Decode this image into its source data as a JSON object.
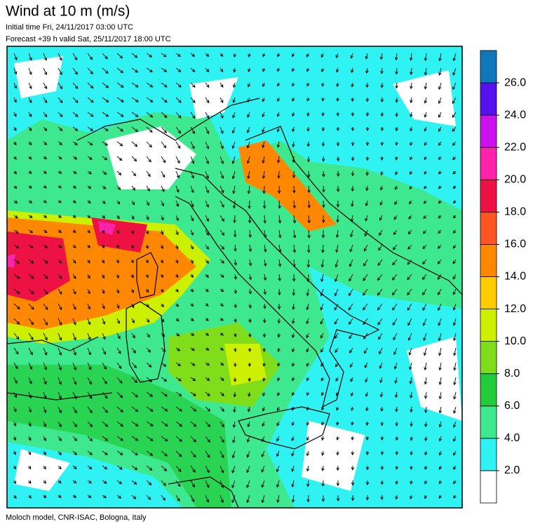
{
  "header": {
    "title": "Wind at 10 m (m/s)",
    "initial_time": "Initial time  Fri, 24/11/2017 03:00 UTC",
    "forecast": "Forecast +39 h valid  Sat, 25/11/2017 18:00 UTC"
  },
  "footer": "Moloch model, CNR-ISAC, Bologna, Italy",
  "colorbar": {
    "colors": [
      "#ffffff",
      "#2ff3f3",
      "#3de88e",
      "#22cc3a",
      "#80dd1a",
      "#ccf000",
      "#ffcc00",
      "#ff8800",
      "#ff5522",
      "#ee1144",
      "#ff22aa",
      "#cc11ee",
      "#5511ee",
      "#1177bb"
    ],
    "ticks": [
      {
        "value": 2,
        "label": "2.0"
      },
      {
        "value": 4,
        "label": "4.0"
      },
      {
        "value": 6,
        "label": "6.0"
      },
      {
        "value": 8,
        "label": "8.0"
      },
      {
        "value": 10,
        "label": "10.0"
      },
      {
        "value": 12,
        "label": "12.0"
      },
      {
        "value": 14,
        "label": "14.0"
      },
      {
        "value": 16,
        "label": "16.0"
      },
      {
        "value": 18,
        "label": "18.0"
      },
      {
        "value": 20,
        "label": "20.0"
      },
      {
        "value": 22,
        "label": "22.0"
      },
      {
        "value": 24,
        "label": "24.0"
      },
      {
        "value": 26,
        "label": "26.0"
      }
    ]
  }
}
